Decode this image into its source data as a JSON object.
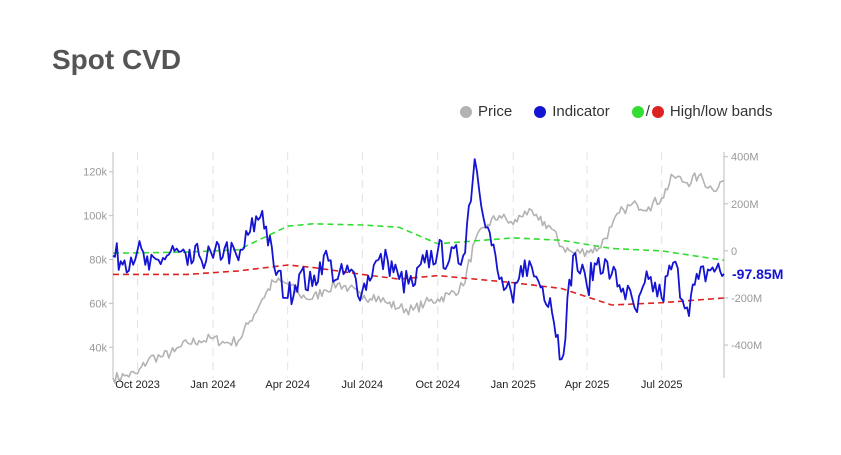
{
  "title": "Spot CVD",
  "legend": {
    "price_label": "Price",
    "indicator_label": "Indicator",
    "bands_label": "High/low bands",
    "bands_separator": "/"
  },
  "colors": {
    "price": "#b3b3b3",
    "indicator": "#1414d2",
    "high_band": "#33dd33",
    "low_band": "#dd2222",
    "grid": "#e2e2e2",
    "axis": "#bdbdbd"
  },
  "chart_data": {
    "type": "line",
    "x_range": [
      "2023-09-01",
      "2025-09-15"
    ],
    "left_axis": {
      "label": "",
      "range": [
        26000,
        129000
      ],
      "ticks": [
        40000,
        60000,
        80000,
        100000,
        120000
      ],
      "tick_labels": [
        "40k",
        "60k",
        "80k",
        "100k",
        "120k"
      ]
    },
    "right_axis": {
      "label": "",
      "range": [
        -540,
        420
      ],
      "ticks": [
        400,
        200,
        0,
        -200,
        -400
      ],
      "tick_labels": [
        "400M",
        "200M",
        "0",
        "-200M",
        "-400M"
      ]
    },
    "x_ticks": [
      "2023-10-01",
      "2024-01-01",
      "2024-04-01",
      "2024-07-01",
      "2024-10-01",
      "2025-01-01",
      "2025-04-01",
      "2025-07-01"
    ],
    "x_tick_labels": [
      "Oct 2023",
      "Jan 2024",
      "Apr 2024",
      "Jul 2024",
      "Oct 2024",
      "Jan 2025",
      "Apr 2025",
      "Jul 2025"
    ],
    "grid": "vertical dashed",
    "legend_position": "top-right",
    "last_value_label": "-97.85M",
    "series": [
      {
        "name": "Price",
        "axis": "left",
        "x": [
          "2023-09-01",
          "2023-09-15",
          "2023-10-01",
          "2023-10-15",
          "2023-11-01",
          "2023-11-15",
          "2023-12-01",
          "2023-12-15",
          "2024-01-01",
          "2024-01-15",
          "2024-02-01",
          "2024-02-15",
          "2024-03-01",
          "2024-03-15",
          "2024-04-01",
          "2024-04-15",
          "2024-05-01",
          "2024-05-15",
          "2024-06-01",
          "2024-06-15",
          "2024-07-01",
          "2024-07-15",
          "2024-08-01",
          "2024-08-15",
          "2024-09-01",
          "2024-09-15",
          "2024-10-01",
          "2024-10-15",
          "2024-11-01",
          "2024-11-15",
          "2024-12-01",
          "2024-12-15",
          "2025-01-01",
          "2025-01-15",
          "2025-02-01",
          "2025-02-15",
          "2025-03-01",
          "2025-03-15",
          "2025-04-01",
          "2025-04-15",
          "2025-05-01",
          "2025-05-15",
          "2025-06-01",
          "2025-06-15",
          "2025-07-01",
          "2025-07-15",
          "2025-08-01",
          "2025-08-15",
          "2025-09-01",
          "2025-09-15"
        ],
        "values": [
          26000,
          27000,
          28000,
          35000,
          36000,
          38000,
          42000,
          43000,
          44000,
          42000,
          43000,
          52000,
          62000,
          70000,
          69000,
          64000,
          62000,
          66000,
          69000,
          67000,
          62000,
          64000,
          60000,
          58000,
          57000,
          60000,
          62000,
          64000,
          68000,
          88000,
          96000,
          100000,
          96000,
          102000,
          98000,
          95000,
          86000,
          83000,
          84000,
          85000,
          95000,
          103000,
          105000,
          104000,
          108000,
          118000,
          115000,
          118000,
          112000,
          116000
        ]
      },
      {
        "name": "Indicator",
        "axis": "right",
        "x": [
          "2023-09-01",
          "2023-09-15",
          "2023-10-01",
          "2023-10-15",
          "2023-11-01",
          "2023-11-15",
          "2023-12-01",
          "2023-12-15",
          "2024-01-01",
          "2024-01-15",
          "2024-02-01",
          "2024-02-15",
          "2024-03-01",
          "2024-03-15",
          "2024-04-01",
          "2024-04-15",
          "2024-05-01",
          "2024-05-15",
          "2024-06-01",
          "2024-06-15",
          "2024-07-01",
          "2024-07-15",
          "2024-08-01",
          "2024-08-15",
          "2024-09-01",
          "2024-09-15",
          "2024-10-01",
          "2024-10-15",
          "2024-11-01",
          "2024-11-15",
          "2024-12-01",
          "2024-12-15",
          "2025-01-01",
          "2025-01-15",
          "2025-02-01",
          "2025-02-15",
          "2025-03-01",
          "2025-03-15",
          "2025-04-01",
          "2025-04-15",
          "2025-05-01",
          "2025-05-15",
          "2025-06-01",
          "2025-06-15",
          "2025-07-01",
          "2025-07-15",
          "2025-08-01",
          "2025-08-15",
          "2025-09-01",
          "2025-09-15"
        ],
        "values": [
          -20,
          -40,
          5,
          -80,
          -30,
          0,
          -60,
          -20,
          -30,
          10,
          -40,
          80,
          170,
          -60,
          -200,
          -100,
          -150,
          -20,
          -120,
          -90,
          -170,
          -60,
          -40,
          -120,
          -150,
          -50,
          0,
          -40,
          -20,
          390,
          100,
          -120,
          -220,
          -40,
          -130,
          -200,
          -460,
          -20,
          -150,
          -30,
          -100,
          -160,
          -260,
          -120,
          -200,
          -50,
          -240,
          -120,
          -70,
          -98
        ]
      },
      {
        "name": "High band",
        "axis": "right",
        "x": [
          "2023-09-01",
          "2023-12-01",
          "2024-02-01",
          "2024-04-01",
          "2024-05-01",
          "2024-07-01",
          "2024-08-15",
          "2024-10-01",
          "2025-01-01",
          "2025-03-01",
          "2025-05-01",
          "2025-07-01",
          "2025-09-15"
        ],
        "values": [
          -10,
          -5,
          5,
          105,
          115,
          110,
          100,
          30,
          55,
          45,
          10,
          0,
          -40
        ]
      },
      {
        "name": "Low band",
        "axis": "right",
        "x": [
          "2023-09-01",
          "2023-12-01",
          "2024-02-01",
          "2024-04-01",
          "2024-05-01",
          "2024-07-01",
          "2024-08-15",
          "2024-10-01",
          "2025-01-01",
          "2025-03-01",
          "2025-05-01",
          "2025-07-01",
          "2025-09-15"
        ],
        "values": [
          -100,
          -100,
          -85,
          -60,
          -70,
          -100,
          -120,
          -105,
          -135,
          -160,
          -230,
          -220,
          -200
        ]
      }
    ]
  }
}
